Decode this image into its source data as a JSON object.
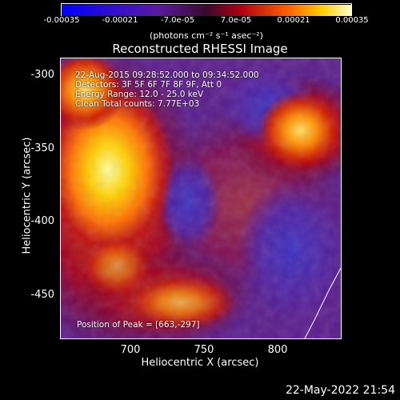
{
  "colorbar": {
    "tick_labels": [
      "-0.00035",
      "-0.00021",
      "-7.0e-05",
      "7.0e-05",
      "0.00021",
      "0.00035"
    ],
    "units": "(photons cm⁻² s⁻¹ asec⁻²)",
    "range": [
      -0.00035,
      0.00035
    ]
  },
  "plot": {
    "title": "Reconstructed RHESSI Image",
    "xlabel": "Heliocentric X (arcsec)",
    "ylabel": "Heliocentric Y (arcsec)",
    "x_ticks": [
      "700",
      "750",
      "800"
    ],
    "y_ticks": [
      "-300",
      "-350",
      "-400",
      "-450"
    ],
    "info_lines": [
      "22-Aug-2015 09:28:52.000 to 09:34:52.000",
      "Detectors: 3F 5F 6F 7F 8F 9F, Att 0",
      "Energy Range: 12.0 - 25.0 keV",
      "Clean     Total counts: 7.77E+03"
    ],
    "peak_label": "Position of Peak = [663,-297]"
  },
  "footer": {
    "timestamp": "22-May-2022 21:54"
  }
}
